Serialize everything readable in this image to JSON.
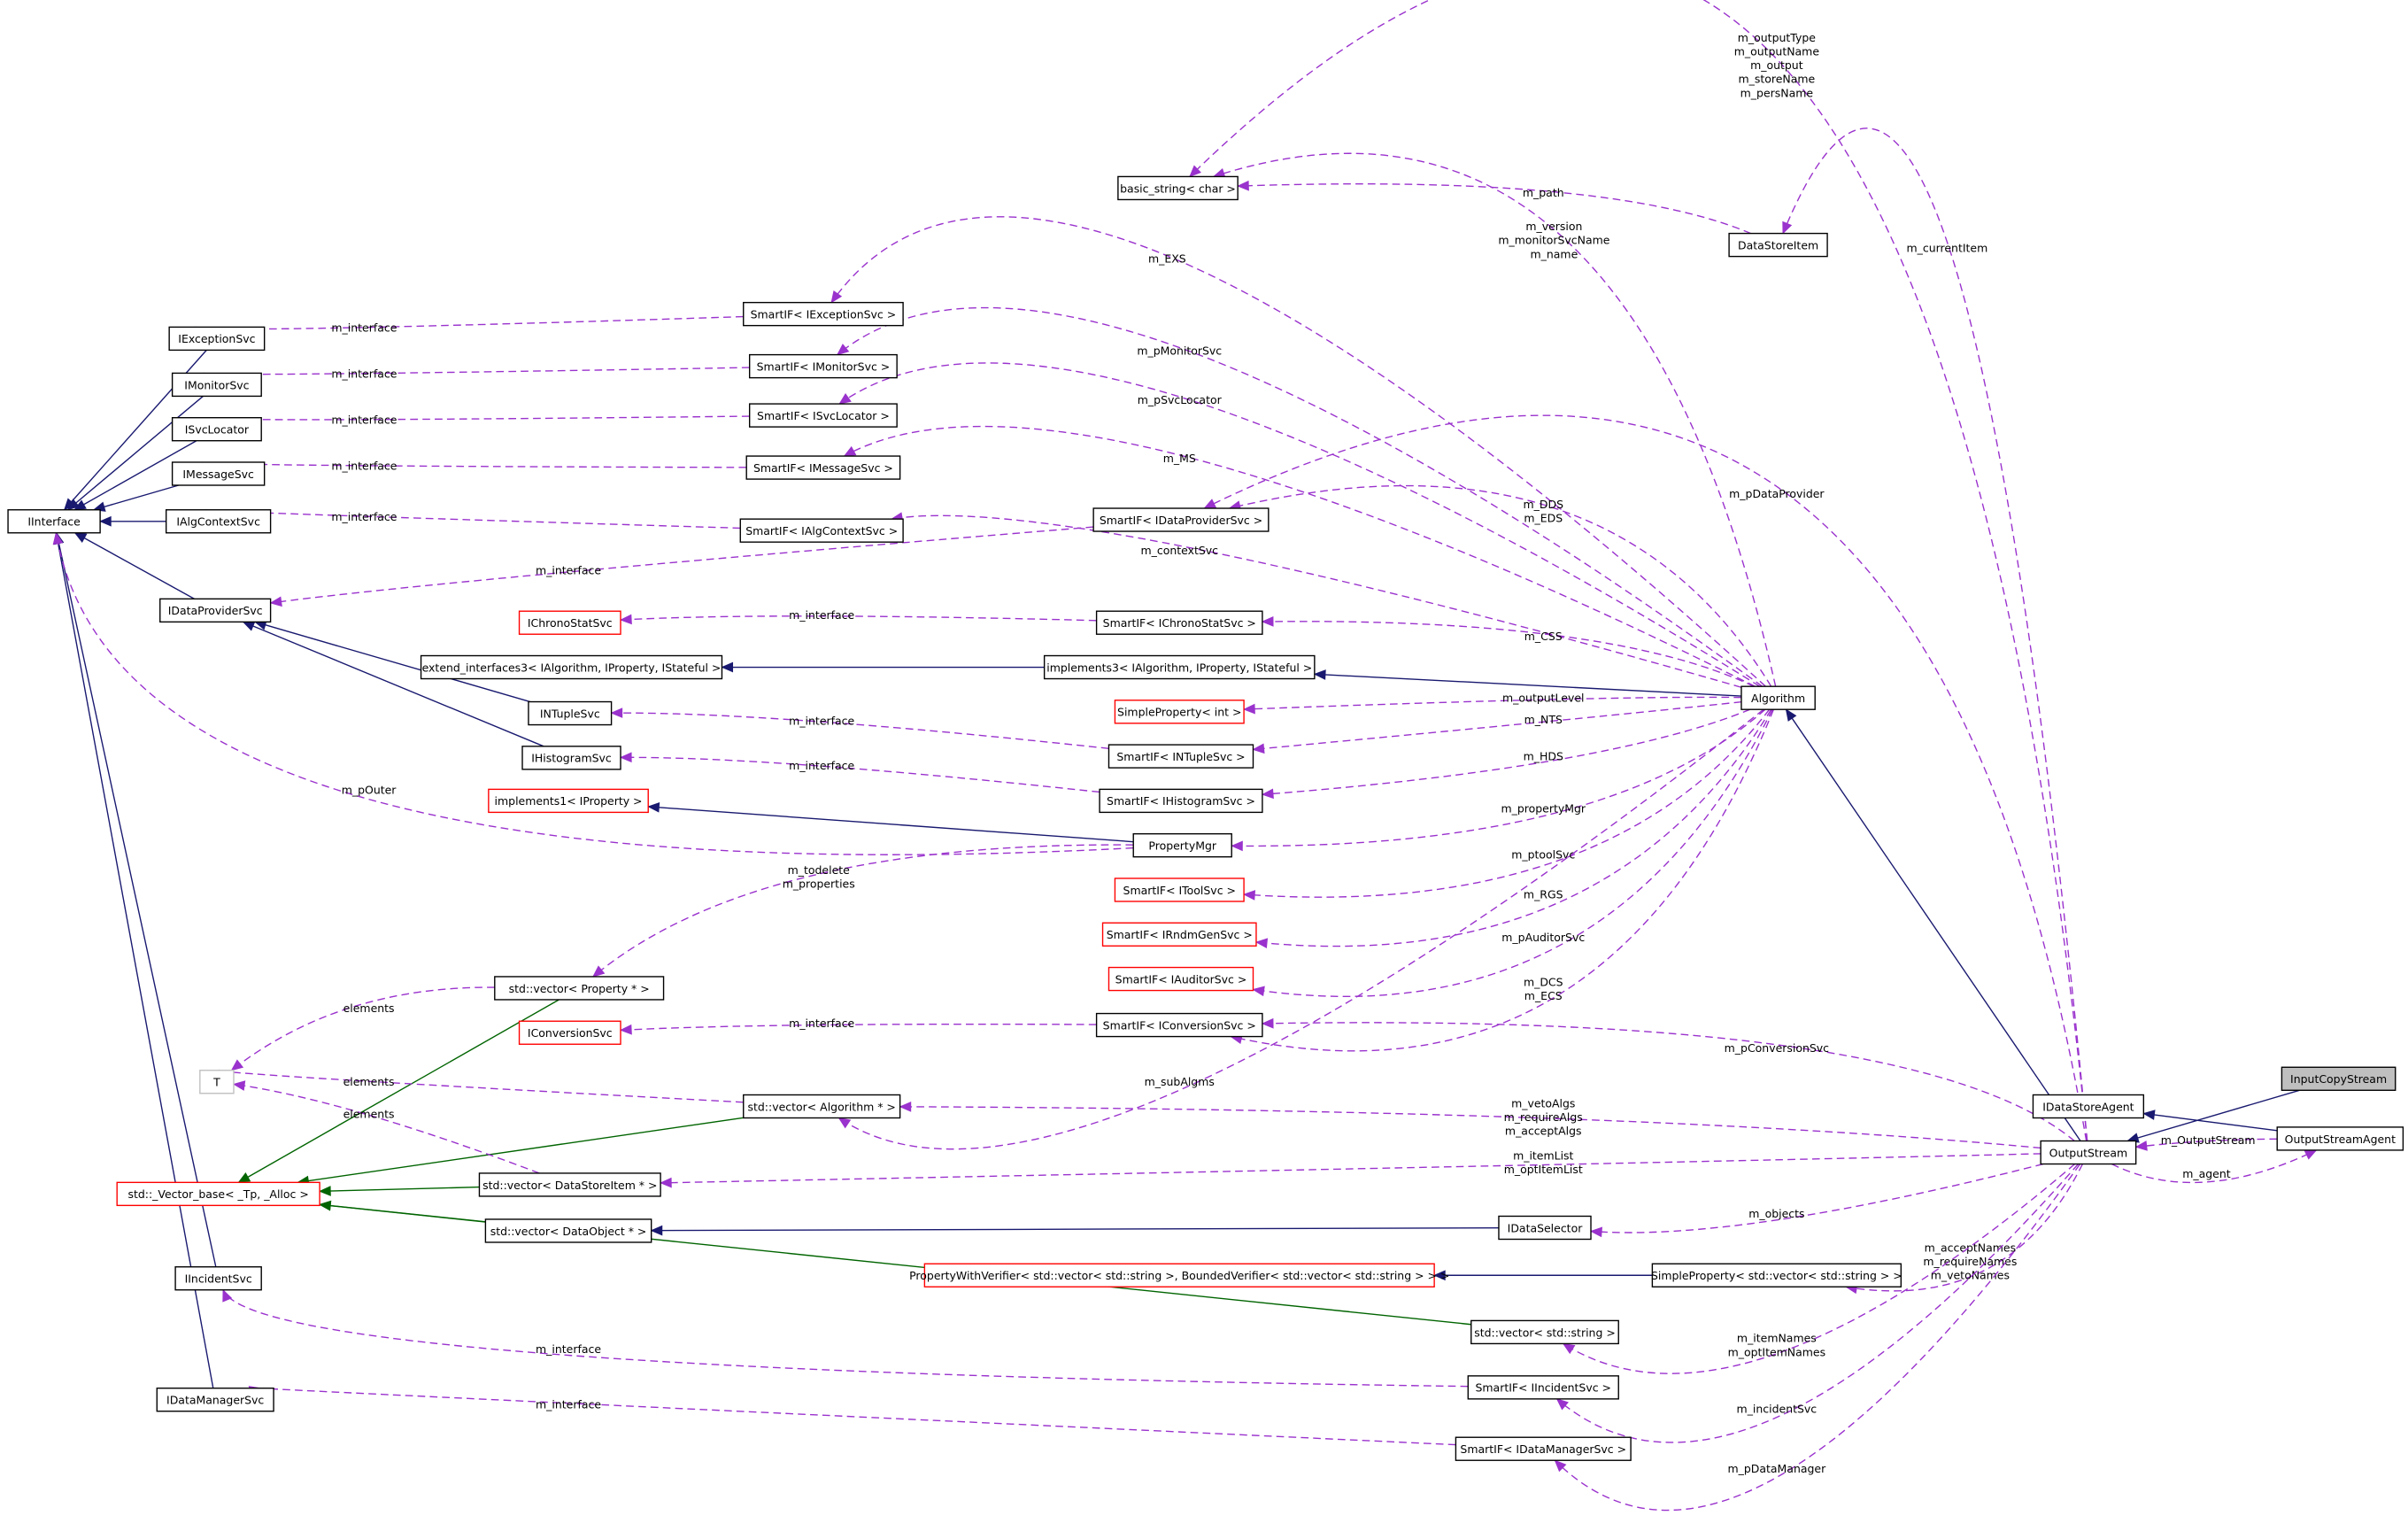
{
  "colors": {
    "inherit": "#191970",
    "template": "#006400",
    "usage": "#9a32cd",
    "highlight_fill": "#bfbfbf",
    "red_border": "#ff0000",
    "gray_border": "#bfbfbf"
  },
  "nodes": [
    {
      "id": "II",
      "label": "IInterface"
    },
    {
      "id": "IExc",
      "label": "IExceptionSvc"
    },
    {
      "id": "IMon",
      "label": "IMonitorSvc"
    },
    {
      "id": "ISvc",
      "label": "ISvcLocator"
    },
    {
      "id": "IMsg",
      "label": "IMessageSvc"
    },
    {
      "id": "IAlg",
      "label": "IAlgContextSvc"
    },
    {
      "id": "IDP",
      "label": "IDataProviderSvc"
    },
    {
      "id": "IInc",
      "label": "IIncidentSvc"
    },
    {
      "id": "IDM",
      "label": "IDataManagerSvc"
    },
    {
      "id": "T",
      "label": "T",
      "style": "gray"
    },
    {
      "id": "VB",
      "label": "std::_Vector_base< _Tp, _Alloc >",
      "style": "red"
    },
    {
      "id": "ICS",
      "label": "IChronoStatSvc",
      "style": "red"
    },
    {
      "id": "EI3",
      "label": "extend_interfaces3< IAlgorithm, IProperty, IStateful >"
    },
    {
      "id": "INT",
      "label": "INTupleSvc"
    },
    {
      "id": "IHS",
      "label": "IHistogramSvc"
    },
    {
      "id": "IMP1",
      "label": "implements1< IProperty >",
      "style": "red"
    },
    {
      "id": "VP",
      "label": "std::vector< Property * >"
    },
    {
      "id": "ICV",
      "label": "IConversionSvc",
      "style": "red"
    },
    {
      "id": "VA",
      "label": "std::vector< Algorithm * >"
    },
    {
      "id": "VDS",
      "label": "std::vector< DataStoreItem * >"
    },
    {
      "id": "VDO",
      "label": "std::vector< DataObject * >"
    },
    {
      "id": "PWV",
      "label": "PropertyWithVerifier< std::vector< std::string >, BoundedVerifier< std::vector< std::string > > >",
      "style": "red"
    },
    {
      "id": "BS",
      "label": "basic_string< char >"
    },
    {
      "id": "SExc",
      "label": "SmartIF< IExceptionSvc >"
    },
    {
      "id": "SMon",
      "label": "SmartIF< IMonitorSvc >"
    },
    {
      "id": "SSvc",
      "label": "SmartIF< ISvcLocator >"
    },
    {
      "id": "SMsg",
      "label": "SmartIF< IMessageSvc >"
    },
    {
      "id": "SAlg",
      "label": "SmartIF< IAlgContextSvc >"
    },
    {
      "id": "SDP",
      "label": "SmartIF< IDataProviderSvc >"
    },
    {
      "id": "SCS",
      "label": "SmartIF< IChronoStatSvc >"
    },
    {
      "id": "IMP3",
      "label": "implements3< IAlgorithm, IProperty, IStateful >"
    },
    {
      "id": "SPI",
      "label": "SimpleProperty< int >",
      "style": "red"
    },
    {
      "id": "SNT",
      "label": "SmartIF< INTupleSvc >"
    },
    {
      "id": "SHS",
      "label": "SmartIF< IHistogramSvc >"
    },
    {
      "id": "PM",
      "label": "PropertyMgr"
    },
    {
      "id": "STS",
      "label": "SmartIF< IToolSvc >",
      "style": "red"
    },
    {
      "id": "SRG",
      "label": "SmartIF< IRndmGenSvc >",
      "style": "red"
    },
    {
      "id": "SAu",
      "label": "SmartIF< IAuditorSvc >",
      "style": "red"
    },
    {
      "id": "SCV",
      "label": "SmartIF< IConversionSvc >"
    },
    {
      "id": "IDS",
      "label": "IDataSelector"
    },
    {
      "id": "SPV",
      "label": "SimpleProperty< std::vector< std::string > >"
    },
    {
      "id": "VS",
      "label": "std::vector< std::string >"
    },
    {
      "id": "SInc",
      "label": "SmartIF< IIncidentSvc >"
    },
    {
      "id": "SDM",
      "label": "SmartIF< IDataManagerSvc >"
    },
    {
      "id": "DSI",
      "label": "DataStoreItem"
    },
    {
      "id": "ALG",
      "label": "Algorithm"
    },
    {
      "id": "IDSA",
      "label": "IDataStoreAgent"
    },
    {
      "id": "OS",
      "label": "OutputStream"
    },
    {
      "id": "OSA",
      "label": "OutputStreamAgent"
    },
    {
      "id": "ICS2",
      "label": "InputCopyStream",
      "style": "highlight"
    }
  ],
  "edges": [
    {
      "from": "IExc",
      "to": "II",
      "type": "inherit"
    },
    {
      "from": "IMon",
      "to": "II",
      "type": "inherit"
    },
    {
      "from": "ISvc",
      "to": "II",
      "type": "inherit"
    },
    {
      "from": "IMsg",
      "to": "II",
      "type": "inherit"
    },
    {
      "from": "IAlg",
      "to": "II",
      "type": "inherit"
    },
    {
      "from": "IDP",
      "to": "II",
      "type": "inherit"
    },
    {
      "from": "IInc",
      "to": "II",
      "type": "inherit"
    },
    {
      "from": "IDM",
      "to": "II",
      "type": "inherit"
    },
    {
      "from": "INT",
      "to": "IDP",
      "type": "inherit"
    },
    {
      "from": "IHS",
      "to": "IDP",
      "type": "inherit"
    },
    {
      "from": "IMP3",
      "to": "EI3",
      "type": "inherit"
    },
    {
      "from": "ALG",
      "to": "IMP3",
      "type": "inherit"
    },
    {
      "from": "PM",
      "to": "IMP1",
      "type": "inherit"
    },
    {
      "from": "OS",
      "to": "ALG",
      "type": "inherit"
    },
    {
      "from": "OSA",
      "to": "IDSA",
      "type": "inherit"
    },
    {
      "from": "ICS2",
      "to": "OS",
      "type": "inherit"
    },
    {
      "from": "IDS",
      "to": "VDO",
      "type": "inherit"
    },
    {
      "from": "SPV",
      "to": "PWV",
      "type": "inherit"
    },
    {
      "from": "VP",
      "to": "VB",
      "type": "template"
    },
    {
      "from": "VA",
      "to": "VB",
      "type": "template"
    },
    {
      "from": "VDS",
      "to": "VB",
      "type": "template"
    },
    {
      "from": "VDO",
      "to": "VB",
      "type": "template"
    },
    {
      "from": "VS",
      "to": "VB",
      "type": "template"
    },
    {
      "from": "SExc",
      "to": "IExc",
      "type": "usage",
      "labels": [
        "m_interface"
      ]
    },
    {
      "from": "SMon",
      "to": "IMon",
      "type": "usage",
      "labels": [
        "m_interface"
      ]
    },
    {
      "from": "SSvc",
      "to": "ISvc",
      "type": "usage",
      "labels": [
        "m_interface"
      ]
    },
    {
      "from": "SMsg",
      "to": "IMsg",
      "type": "usage",
      "labels": [
        "m_interface"
      ]
    },
    {
      "from": "SAlg",
      "to": "IAlg",
      "type": "usage",
      "labels": [
        "m_interface"
      ]
    },
    {
      "from": "SDP",
      "to": "IDP",
      "type": "usage",
      "labels": [
        "m_interface"
      ]
    },
    {
      "from": "SCS",
      "to": "ICS",
      "type": "usage",
      "labels": [
        "m_interface"
      ]
    },
    {
      "from": "SNT",
      "to": "INT",
      "type": "usage",
      "labels": [
        "m_interface"
      ]
    },
    {
      "from": "SHS",
      "to": "IHS",
      "type": "usage",
      "labels": [
        "m_interface"
      ]
    },
    {
      "from": "SCV",
      "to": "ICV",
      "type": "usage",
      "labels": [
        "m_interface"
      ]
    },
    {
      "from": "SInc",
      "to": "IInc",
      "type": "usage",
      "labels": [
        "m_interface"
      ]
    },
    {
      "from": "SDM",
      "to": "IDM",
      "type": "usage",
      "labels": [
        "m_interface"
      ]
    },
    {
      "from": "PM",
      "to": "II",
      "type": "usage",
      "labels": [
        "m_pOuter"
      ]
    },
    {
      "from": "PM",
      "to": "VP",
      "type": "usage",
      "labels": [
        "m_todelete",
        "m_properties"
      ]
    },
    {
      "from": "VP",
      "to": "T",
      "type": "usage",
      "labels": [
        "elements"
      ]
    },
    {
      "from": "VA",
      "to": "T",
      "type": "usage",
      "labels": [
        "elements"
      ]
    },
    {
      "from": "VDS",
      "to": "T",
      "type": "usage",
      "labels": [
        "elements"
      ]
    },
    {
      "from": "ALG",
      "to": "BS",
      "type": "usage",
      "labels": [
        "m_version",
        "m_monitorSvcName",
        "m_name"
      ]
    },
    {
      "from": "ALG",
      "to": "SExc",
      "type": "usage",
      "labels": [
        "m_EXS"
      ]
    },
    {
      "from": "ALG",
      "to": "SMon",
      "type": "usage",
      "labels": [
        "m_pMonitorSvc"
      ]
    },
    {
      "from": "ALG",
      "to": "SSvc",
      "type": "usage",
      "labels": [
        "m_pSvcLocator"
      ]
    },
    {
      "from": "ALG",
      "to": "SMsg",
      "type": "usage",
      "labels": [
        "m_MS"
      ]
    },
    {
      "from": "ALG",
      "to": "SDP",
      "type": "usage",
      "labels": [
        "m_DDS",
        "m_EDS"
      ]
    },
    {
      "from": "ALG",
      "to": "SAlg",
      "type": "usage",
      "labels": [
        "m_contextSvc"
      ]
    },
    {
      "from": "ALG",
      "to": "SCS",
      "type": "usage",
      "labels": [
        "m_CSS"
      ]
    },
    {
      "from": "ALG",
      "to": "SPI",
      "type": "usage",
      "labels": [
        "m_outputLevel"
      ]
    },
    {
      "from": "ALG",
      "to": "SNT",
      "type": "usage",
      "labels": [
        "m_NTS"
      ]
    },
    {
      "from": "ALG",
      "to": "SHS",
      "type": "usage",
      "labels": [
        "m_HDS"
      ]
    },
    {
      "from": "ALG",
      "to": "PM",
      "type": "usage",
      "labels": [
        "m_propertyMgr"
      ]
    },
    {
      "from": "ALG",
      "to": "STS",
      "type": "usage",
      "labels": [
        "m_ptoolSvc"
      ]
    },
    {
      "from": "ALG",
      "to": "SRG",
      "type": "usage",
      "labels": [
        "m_RGS"
      ]
    },
    {
      "from": "ALG",
      "to": "SAu",
      "type": "usage",
      "labels": [
        "m_pAuditorSvc"
      ]
    },
    {
      "from": "ALG",
      "to": "SCV",
      "type": "usage",
      "labels": [
        "m_DCS",
        "m_ECS"
      ]
    },
    {
      "from": "ALG",
      "to": "VA",
      "type": "usage",
      "labels": [
        "m_subAlgms"
      ]
    },
    {
      "from": "OS",
      "to": "BS",
      "type": "usage",
      "labels": [
        "m_outputType",
        "m_outputName",
        "m_output",
        "m_storeName",
        "m_persName"
      ]
    },
    {
      "from": "OS",
      "to": "DSI",
      "type": "usage",
      "labels": [
        "m_currentItem"
      ]
    },
    {
      "from": "OS",
      "to": "SDP",
      "type": "usage",
      "labels": [
        "m_pDataProvider"
      ]
    },
    {
      "from": "OS",
      "to": "SCV",
      "type": "usage",
      "labels": [
        "m_pConversionSvc"
      ]
    },
    {
      "from": "OS",
      "to": "VA",
      "type": "usage",
      "labels": [
        "m_vetoAlgs",
        "m_requireAlgs",
        "m_acceptAlgs"
      ]
    },
    {
      "from": "OS",
      "to": "VDS",
      "type": "usage",
      "labels": [
        "m_itemList",
        "m_optItemList"
      ]
    },
    {
      "from": "OS",
      "to": "IDS",
      "type": "usage",
      "labels": [
        "m_objects"
      ]
    },
    {
      "from": "OS",
      "to": "SPV",
      "type": "usage",
      "labels": [
        "m_acceptNames",
        "m_requireNames",
        "m_vetoNames"
      ]
    },
    {
      "from": "OS",
      "to": "VS",
      "type": "usage",
      "labels": [
        "m_itemNames",
        "m_optItemNames"
      ]
    },
    {
      "from": "OS",
      "to": "SInc",
      "type": "usage",
      "labels": [
        "m_incidentSvc"
      ]
    },
    {
      "from": "OS",
      "to": "SDM",
      "type": "usage",
      "labels": [
        "m_pDataManager"
      ]
    },
    {
      "from": "OS",
      "to": "OSA",
      "type": "usage",
      "labels": [
        "m_agent"
      ]
    },
    {
      "from": "DSI",
      "to": "BS",
      "type": "usage",
      "labels": [
        "m_path"
      ]
    },
    {
      "from": "OSA",
      "to": "OS",
      "type": "usage",
      "labels": [
        "m_OutputStream"
      ]
    }
  ]
}
